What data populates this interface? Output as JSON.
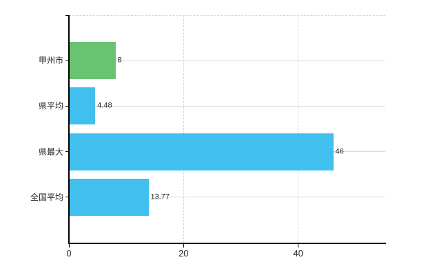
{
  "chart_data": {
    "type": "bar",
    "orientation": "horizontal",
    "title": "",
    "xlabel": "",
    "ylabel": "",
    "categories": [
      "甲州市",
      "県平均",
      "県最大",
      "全国平均"
    ],
    "values": [
      8,
      4.48,
      46,
      13.77
    ],
    "value_labels": [
      "8",
      "4.48",
      "46",
      "13.77"
    ],
    "bar_colors": [
      "#68c471",
      "#41c0f0",
      "#41c0f0",
      "#41c0f0"
    ],
    "x_ticks": [
      0,
      20,
      40
    ],
    "x_tick_labels": [
      "0",
      "20",
      "40"
    ],
    "xlim": [
      0,
      55.2
    ],
    "grid": {
      "horizontal_style": "solid",
      "vertical_style": "dashed",
      "color": "#d8d8d8"
    },
    "axis_color": "#000000",
    "text_color": "#262626",
    "background": "#ffffff",
    "legend_visible": false
  }
}
